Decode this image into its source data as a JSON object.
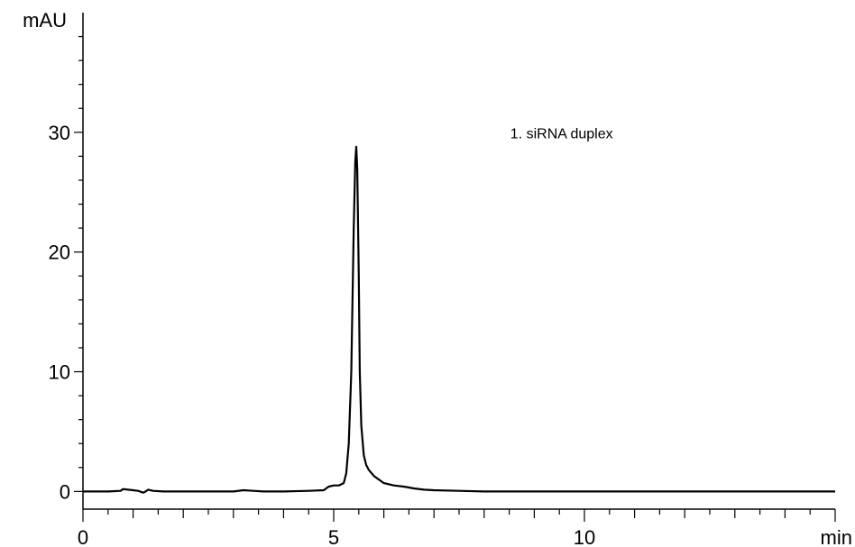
{
  "chart_data": {
    "type": "line",
    "title": "",
    "xlabel": "min",
    "ylabel": "mAU",
    "xlim": [
      0,
      15
    ],
    "ylim": [
      -0.5,
      40
    ],
    "x_ticks": [
      0,
      5,
      10
    ],
    "y_ticks": [
      0,
      10,
      20,
      30
    ],
    "grid": false,
    "annotations": [
      {
        "text": "1. siRNA duplex",
        "x": 10.5,
        "y": 29.5
      }
    ],
    "series": [
      {
        "x": [
          0,
          0.5,
          0.75,
          0.8,
          0.9,
          1.0,
          1.1,
          1.2,
          1.25,
          1.3,
          1.4,
          1.6,
          2.0,
          2.5,
          3.0,
          3.2,
          3.4,
          3.6,
          4.0,
          4.5,
          4.8,
          4.9,
          5.0,
          5.1,
          5.2,
          5.25,
          5.3,
          5.35,
          5.4,
          5.43,
          5.45,
          5.47,
          5.5,
          5.52,
          5.55,
          5.6,
          5.65,
          5.7,
          5.8,
          5.9,
          6.0,
          6.2,
          6.4,
          6.6,
          6.8,
          7.0,
          7.5,
          8.0,
          9.0,
          10.0,
          11.0,
          12.0,
          13.0,
          14.0,
          15.0
        ],
        "values": [
          0.0,
          0.0,
          0.05,
          0.2,
          0.15,
          0.1,
          0.05,
          -0.1,
          0.0,
          0.15,
          0.05,
          0.0,
          0.0,
          0.0,
          0.0,
          0.1,
          0.05,
          0.0,
          0.0,
          0.05,
          0.1,
          0.4,
          0.5,
          0.5,
          0.7,
          1.5,
          4.0,
          10.0,
          22.0,
          27.5,
          28.8,
          27.0,
          18.0,
          10.0,
          5.5,
          3.0,
          2.2,
          1.8,
          1.3,
          1.0,
          0.7,
          0.5,
          0.4,
          0.25,
          0.15,
          0.1,
          0.05,
          0.0,
          0.0,
          0.0,
          0.0,
          0.0,
          0.0,
          0.0,
          0.0
        ]
      }
    ]
  }
}
